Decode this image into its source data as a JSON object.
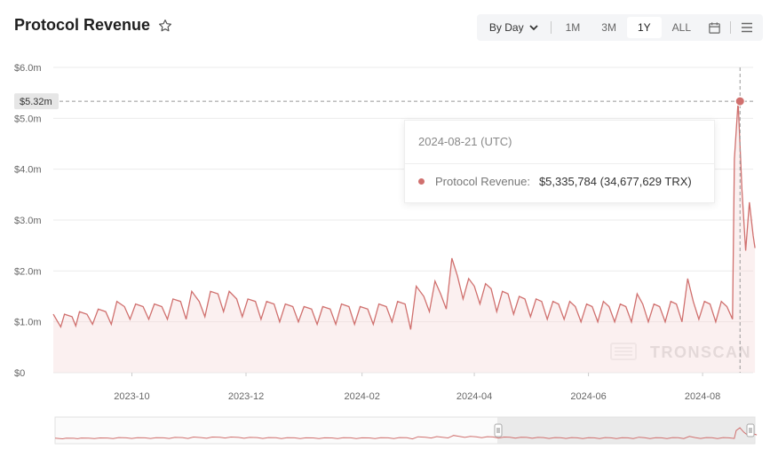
{
  "header": {
    "title": "Protocol Revenue"
  },
  "toolbar": {
    "interval": "By Day",
    "ranges": [
      {
        "label": "1M",
        "active": false
      },
      {
        "label": "3M",
        "active": false
      },
      {
        "label": "1Y",
        "active": true
      },
      {
        "label": "ALL",
        "active": false
      }
    ]
  },
  "tooltip": {
    "date": "2024-08-21 (UTC)",
    "series_label": "Protocol Revenue:",
    "value": "$5,335,784 (34,677,629 TRX)"
  },
  "watermark": "TRONSCAN",
  "colors": {
    "line": "#d0706e",
    "fill": "#f3d4d3",
    "grid": "#ebebeb"
  },
  "chart_data": {
    "type": "area",
    "title": "Protocol Revenue",
    "x_start": "2023-08-20",
    "x_end": "2024-08-28",
    "xticks": [
      "2023-10",
      "2023-12",
      "2024-02",
      "2024-04",
      "2024-06",
      "2024-08"
    ],
    "yticks": [
      "$0",
      "$1.0m",
      "$2.0m",
      "$3.0m",
      "$4.0m",
      "$5.0m",
      "$6.0m"
    ],
    "ylim": [
      0,
      6.0
    ],
    "yunit": "$m",
    "crosshair_label": "$5.32m",
    "highlight": {
      "x": "2024-08-21",
      "y": 5.3358
    },
    "series": [
      {
        "values": [
          [
            0,
            1.15
          ],
          [
            4,
            0.9
          ],
          [
            6,
            1.15
          ],
          [
            10,
            1.1
          ],
          [
            12,
            0.92
          ],
          [
            14,
            1.2
          ],
          [
            18,
            1.15
          ],
          [
            21,
            0.95
          ],
          [
            24,
            1.25
          ],
          [
            28,
            1.2
          ],
          [
            31,
            0.95
          ],
          [
            34,
            1.4
          ],
          [
            38,
            1.3
          ],
          [
            41,
            1.05
          ],
          [
            44,
            1.35
          ],
          [
            48,
            1.3
          ],
          [
            51,
            1.05
          ],
          [
            54,
            1.35
          ],
          [
            58,
            1.3
          ],
          [
            61,
            1.05
          ],
          [
            64,
            1.45
          ],
          [
            68,
            1.4
          ],
          [
            71,
            1.05
          ],
          [
            74,
            1.6
          ],
          [
            78,
            1.4
          ],
          [
            81,
            1.1
          ],
          [
            84,
            1.6
          ],
          [
            88,
            1.55
          ],
          [
            91,
            1.2
          ],
          [
            94,
            1.6
          ],
          [
            98,
            1.45
          ],
          [
            101,
            1.1
          ],
          [
            104,
            1.45
          ],
          [
            108,
            1.4
          ],
          [
            111,
            1.05
          ],
          [
            114,
            1.4
          ],
          [
            118,
            1.35
          ],
          [
            121,
            1.0
          ],
          [
            124,
            1.35
          ],
          [
            128,
            1.3
          ],
          [
            131,
            1.0
          ],
          [
            134,
            1.3
          ],
          [
            138,
            1.25
          ],
          [
            141,
            0.95
          ],
          [
            144,
            1.3
          ],
          [
            148,
            1.25
          ],
          [
            151,
            0.95
          ],
          [
            154,
            1.35
          ],
          [
            158,
            1.3
          ],
          [
            161,
            0.95
          ],
          [
            164,
            1.3
          ],
          [
            168,
            1.25
          ],
          [
            171,
            0.95
          ],
          [
            174,
            1.35
          ],
          [
            178,
            1.3
          ],
          [
            181,
            1.0
          ],
          [
            184,
            1.4
          ],
          [
            188,
            1.35
          ],
          [
            191,
            0.85
          ],
          [
            194,
            1.7
          ],
          [
            198,
            1.5
          ],
          [
            201,
            1.2
          ],
          [
            204,
            1.8
          ],
          [
            207,
            1.55
          ],
          [
            210,
            1.25
          ],
          [
            213,
            2.25
          ],
          [
            216,
            1.9
          ],
          [
            219,
            1.45
          ],
          [
            222,
            1.85
          ],
          [
            225,
            1.7
          ],
          [
            228,
            1.35
          ],
          [
            231,
            1.75
          ],
          [
            234,
            1.65
          ],
          [
            237,
            1.2
          ],
          [
            240,
            1.6
          ],
          [
            243,
            1.55
          ],
          [
            246,
            1.15
          ],
          [
            249,
            1.5
          ],
          [
            252,
            1.45
          ],
          [
            255,
            1.1
          ],
          [
            258,
            1.45
          ],
          [
            261,
            1.4
          ],
          [
            264,
            1.05
          ],
          [
            267,
            1.4
          ],
          [
            270,
            1.35
          ],
          [
            273,
            1.05
          ],
          [
            276,
            1.4
          ],
          [
            279,
            1.3
          ],
          [
            282,
            1.0
          ],
          [
            285,
            1.35
          ],
          [
            288,
            1.3
          ],
          [
            291,
            1.0
          ],
          [
            294,
            1.4
          ],
          [
            297,
            1.3
          ],
          [
            300,
            1.0
          ],
          [
            303,
            1.35
          ],
          [
            306,
            1.3
          ],
          [
            309,
            1.0
          ],
          [
            312,
            1.55
          ],
          [
            315,
            1.35
          ],
          [
            318,
            1.0
          ],
          [
            321,
            1.35
          ],
          [
            324,
            1.3
          ],
          [
            327,
            1.0
          ],
          [
            330,
            1.4
          ],
          [
            333,
            1.35
          ],
          [
            336,
            1.0
          ],
          [
            339,
            1.85
          ],
          [
            342,
            1.4
          ],
          [
            345,
            1.05
          ],
          [
            348,
            1.4
          ],
          [
            351,
            1.35
          ],
          [
            354,
            1.0
          ],
          [
            357,
            1.4
          ],
          [
            360,
            1.3
          ],
          [
            363,
            1.05
          ],
          [
            364,
            4.2
          ],
          [
            366,
            5.3358
          ],
          [
            368,
            3.6
          ],
          [
            370,
            2.4
          ],
          [
            372,
            3.35
          ],
          [
            374,
            2.7
          ],
          [
            375,
            2.45
          ]
        ]
      }
    ]
  }
}
